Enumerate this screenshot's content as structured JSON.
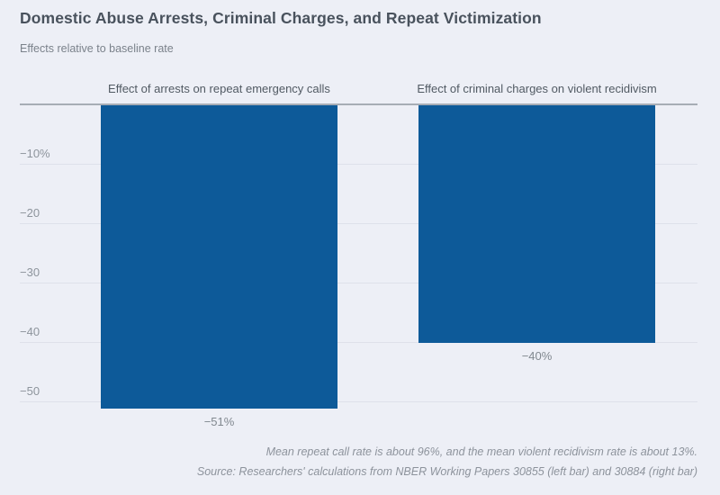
{
  "header": {
    "title": "Domestic Abuse Arrests, Criminal Charges, and Repeat Victimization",
    "subtitle": "Effects relative to baseline rate"
  },
  "chart_data": {
    "type": "bar",
    "title": "Domestic Abuse Arrests, Criminal Charges, and Repeat Victimization",
    "subtitle": "Effects relative to baseline rate",
    "categories": [
      "Effect of arrests on repeat emergency calls",
      "Effect of criminal charges on violent recidivism"
    ],
    "values": [
      -51,
      -40
    ],
    "value_labels": [
      "−51%",
      "−40%"
    ],
    "xlabel": "",
    "ylabel": "",
    "ylim": [
      -55,
      0
    ],
    "yticks": [
      -10,
      -20,
      -30,
      -40,
      -50
    ],
    "ytick_labels": [
      "−10%",
      "−20",
      "−30",
      "−40",
      "−50"
    ],
    "grid": true,
    "legend": false,
    "bar_color": "#0d5a99",
    "orientation": "vertical-negative",
    "zero_axis": true
  },
  "footer": {
    "note": "Mean repeat call rate is about 96%, and the mean violent recidivism rate is about 13%.",
    "source": "Source: Researchers' calculations from NBER Working Papers 30855 (left bar) and 30884 (right bar)"
  },
  "colors": {
    "background": "#edeff6",
    "bar": "#0d5a99",
    "title_text": "#49525d",
    "subtitle_text": "#7b828b",
    "category_text": "#515a63",
    "tick_text": "#8d949c",
    "value_text": "#81888f",
    "footer_text": "#8d939c",
    "gridline": "#dee1ea",
    "zero_line": "#a7adb5"
  }
}
